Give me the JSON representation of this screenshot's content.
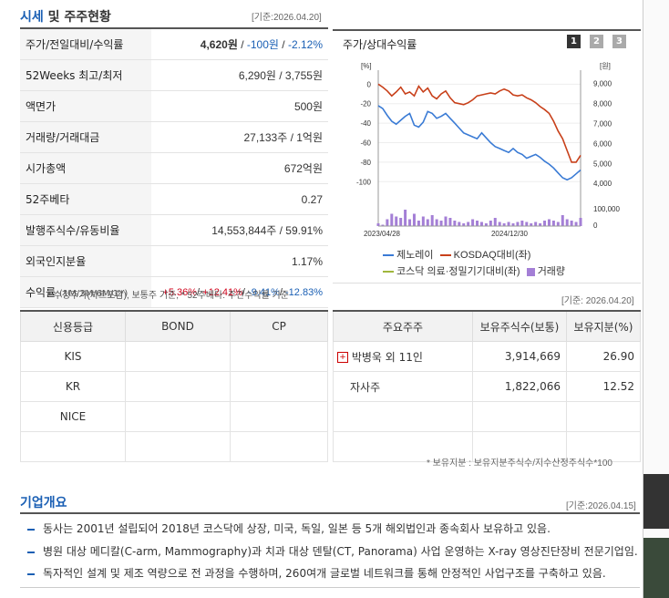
{
  "header": {
    "title_a": "시세",
    "title_b": "및 주주현황",
    "date": "[기준:2026.04.20]"
  },
  "quote_rows": [
    {
      "label": "주가/전일대비/수익률",
      "price": "4,620원",
      "sep1": " / ",
      "change": "-100원",
      "sep2": " / ",
      "rate": "-2.12%"
    },
    {
      "label": "52Weeks 최고/최저",
      "value": "6,290원 / 3,755원"
    },
    {
      "label": "액면가",
      "value": "500원"
    },
    {
      "label": "거래량/거래대금",
      "value": "27,133주 / 1억원"
    },
    {
      "label": "시가총액",
      "value": "672억원"
    },
    {
      "label": "52주베타",
      "value": "0.27"
    },
    {
      "label": "발행주식수/유동비율",
      "value": "14,553,844주 / 59.91%"
    },
    {
      "label": "외국인지분율",
      "value": "1.17%"
    }
  ],
  "returns_row": {
    "label": "수익률",
    "sub": "(1M/3M/6M/1Y)",
    "r1": "+5.36%",
    "r2": "+12.41%",
    "r3": "-9.41%",
    "r4": "-12.83%"
  },
  "footnote": "* 수정주가(차트포함), 보통주 기준, * 52주베타: 주간수익률 기준",
  "chart": {
    "title": "주가/상대수익률",
    "tab1": "1",
    "tab2": "2",
    "tab3": "3",
    "left_unit": "[%]",
    "right_unit": "[원]",
    "vol_label": "100,000",
    "vol_zero": "0",
    "legend": {
      "l1": "제노레이",
      "l2": "KOSDAQ대비(좌)",
      "l3": "코스닥 의료·정밀기기대비(좌)",
      "l4": "거래량"
    },
    "colors": {
      "series1": "#3a7bd5",
      "series2": "#c8401a",
      "series3": "#a0b63c",
      "volume": "#a47fd6"
    }
  },
  "chart_data": {
    "type": "line",
    "x_ticks": [
      "2023/04/28",
      "2024/12/30"
    ],
    "y_left_ticks": [
      "0",
      "-20",
      "-40",
      "-60",
      "-80",
      "-100"
    ],
    "y_left_range": [
      -110,
      5
    ],
    "y_right_ticks": [
      "9,000",
      "8,000",
      "7,000",
      "6,000",
      "5,000",
      "4,000"
    ],
    "y_right_range": [
      3600,
      9200
    ],
    "series": [
      {
        "name": "제노레이",
        "axis": "left",
        "values": [
          -22,
          -25,
          -32,
          -38,
          -41,
          -37,
          -33,
          -30,
          -42,
          -44,
          -39,
          -28,
          -30,
          -35,
          -33,
          -30,
          -35,
          -40,
          -45,
          -50,
          -52,
          -54,
          -56,
          -50,
          -55,
          -60,
          -64,
          -66,
          -68,
          -70,
          -66,
          -70,
          -72,
          -76,
          -74,
          -72,
          -75,
          -79,
          -82,
          -86,
          -91,
          -96,
          -98,
          -96,
          -92,
          -88
        ]
      },
      {
        "name": "KOSDAQ대비(좌)",
        "axis": "left",
        "values": [
          0,
          -3,
          -7,
          -12,
          -8,
          -3,
          -10,
          -8,
          -12,
          -2,
          -8,
          -4,
          -12,
          -15,
          -10,
          -7,
          -14,
          -19,
          -20,
          -21,
          -19,
          -16,
          -12,
          -11,
          -10,
          -9,
          -10,
          -7,
          -5,
          -7,
          -11,
          -12,
          -11,
          -14,
          -16,
          -19,
          -23,
          -26,
          -30,
          -38,
          -48,
          -56,
          -68,
          -80,
          -80,
          -73
        ]
      }
    ],
    "volume": [
      2,
      1,
      5,
      9,
      7,
      6,
      12,
      5,
      9,
      4,
      7,
      5,
      8,
      5,
      4,
      7,
      6,
      4,
      3,
      2,
      3,
      5,
      4,
      3,
      2,
      4,
      6,
      3,
      2,
      3,
      2,
      3,
      4,
      3,
      2,
      3,
      2,
      4,
      5,
      4,
      3,
      8,
      5,
      4,
      3,
      6
    ]
  },
  "credit_table": {
    "headers": [
      "신용등급",
      "BOND",
      "CP"
    ],
    "rows": [
      [
        "KIS",
        "",
        ""
      ],
      [
        "KR",
        "",
        ""
      ],
      [
        "NICE",
        "",
        ""
      ]
    ]
  },
  "holders_table": {
    "date": "[기준: 2026.04.20]",
    "headers": [
      "주요주주",
      "보유주식수(보통)",
      "보유지분(%)"
    ],
    "rows": [
      [
        "박병욱 외 11인",
        "3,914,669",
        "26.90"
      ],
      [
        "자사주",
        "1,822,066",
        "12.52"
      ]
    ],
    "footnote": "* 보유지분 : 보유지분주식수/지수산정주식수*100"
  },
  "overview": {
    "title": "기업개요",
    "date": "[기준:2026.04.15]",
    "lines": [
      "동사는 2001년 설립되어 2018년 코스닥에 상장, 미국, 독일, 일본 등 5개 해외법인과 종속회사 보유하고 있음.",
      "병원 대상 메디칼(C-arm, Mammography)과 치과 대상 덴탈(CT, Panorama) 사업 운영하는 X-ray 영상진단장비 전문기업임.",
      "독자적인 설계 및 제조 역량으로 전 과정을 수행하며, 260여개 글로벌 네트워크를 통해 안정적인 사업구조를 구축하고 있음."
    ]
  }
}
